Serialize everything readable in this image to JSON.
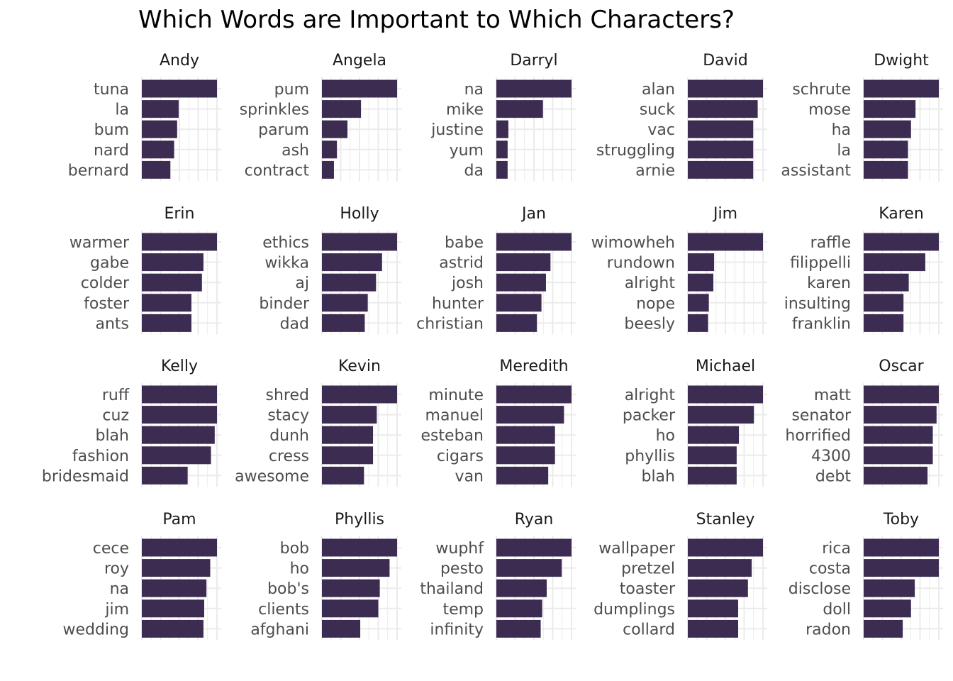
{
  "chart_data": {
    "type": "bar",
    "orientation": "horizontal",
    "title": "Which Words are Important to Which Characters?",
    "xlabel": "",
    "ylabel": "",
    "grid": true,
    "legend": "none",
    "bar_color": "#3d2c52",
    "grid_color": "#ebebeb",
    "xlim": [
      0,
      1
    ],
    "value_unit": "relative importance (fraction of panel maximum, no axis ticks printed)",
    "panels": [
      {
        "character": "Andy",
        "words": [
          "tuna",
          "la",
          "bum",
          "nard",
          "bernard"
        ],
        "values": [
          1.0,
          0.49,
          0.47,
          0.43,
          0.38
        ]
      },
      {
        "character": "Angela",
        "words": [
          "pum",
          "sprinkles",
          "parum",
          "ash",
          "contract"
        ],
        "values": [
          1.0,
          0.52,
          0.34,
          0.2,
          0.16
        ]
      },
      {
        "character": "Darryl",
        "words": [
          "na",
          "mike",
          "justine",
          "yum",
          "da"
        ],
        "values": [
          1.0,
          0.62,
          0.16,
          0.15,
          0.15
        ]
      },
      {
        "character": "David",
        "words": [
          "alan",
          "suck",
          "vac",
          "struggling",
          "arnie"
        ],
        "values": [
          1.0,
          0.93,
          0.87,
          0.87,
          0.87
        ]
      },
      {
        "character": "Dwight",
        "words": [
          "schrute",
          "mose",
          "ha",
          "la",
          "assistant"
        ],
        "values": [
          1.0,
          0.69,
          0.63,
          0.59,
          0.59
        ]
      },
      {
        "character": "Erin",
        "words": [
          "warmer",
          "gabe",
          "colder",
          "foster",
          "ants"
        ],
        "values": [
          1.0,
          0.82,
          0.8,
          0.66,
          0.66
        ]
      },
      {
        "character": "Holly",
        "words": [
          "ethics",
          "wikka",
          "aj",
          "binder",
          "dad"
        ],
        "values": [
          1.0,
          0.8,
          0.72,
          0.61,
          0.57
        ]
      },
      {
        "character": "Jan",
        "words": [
          "babe",
          "astrid",
          "josh",
          "hunter",
          "christian"
        ],
        "values": [
          1.0,
          0.72,
          0.66,
          0.6,
          0.54
        ]
      },
      {
        "character": "Jim",
        "words": [
          "wimowheh",
          "rundown",
          "alright",
          "nope",
          "beesly"
        ],
        "values": [
          1.0,
          0.35,
          0.34,
          0.28,
          0.27
        ]
      },
      {
        "character": "Karen",
        "words": [
          "raffle",
          "filippelli",
          "karen",
          "insulting",
          "franklin"
        ],
        "values": [
          1.0,
          0.82,
          0.6,
          0.53,
          0.53
        ]
      },
      {
        "character": "Kelly",
        "words": [
          "ruff",
          "cuz",
          "blah",
          "fashion",
          "bridesmaid"
        ],
        "values": [
          1.0,
          1.0,
          0.97,
          0.92,
          0.61
        ]
      },
      {
        "character": "Kevin",
        "words": [
          "shred",
          "stacy",
          "dunh",
          "cress",
          "awesome"
        ],
        "values": [
          1.0,
          0.73,
          0.68,
          0.68,
          0.56
        ]
      },
      {
        "character": "Meredith",
        "words": [
          "minute",
          "manuel",
          "esteban",
          "cigars",
          "van"
        ],
        "values": [
          1.0,
          0.9,
          0.78,
          0.78,
          0.69
        ]
      },
      {
        "character": "Michael",
        "words": [
          "alright",
          "packer",
          "ho",
          "phyllis",
          "blah"
        ],
        "values": [
          1.0,
          0.88,
          0.68,
          0.65,
          0.65
        ]
      },
      {
        "character": "Oscar",
        "words": [
          "matt",
          "senator",
          "horrified",
          "4300",
          "debt"
        ],
        "values": [
          1.0,
          0.97,
          0.92,
          0.92,
          0.85
        ]
      },
      {
        "character": "Pam",
        "words": [
          "cece",
          "roy",
          "na",
          "jim",
          "wedding"
        ],
        "values": [
          1.0,
          0.91,
          0.86,
          0.83,
          0.82
        ]
      },
      {
        "character": "Phyllis",
        "words": [
          "bob",
          "ho",
          "bob's",
          "clients",
          "afghani"
        ],
        "values": [
          1.0,
          0.9,
          0.77,
          0.75,
          0.51
        ]
      },
      {
        "character": "Ryan",
        "words": [
          "wuphf",
          "pesto",
          "thailand",
          "temp",
          "infinity"
        ],
        "values": [
          1.0,
          0.87,
          0.67,
          0.61,
          0.59
        ]
      },
      {
        "character": "Stanley",
        "words": [
          "wallpaper",
          "pretzel",
          "toaster",
          "dumplings",
          "collard"
        ],
        "values": [
          1.0,
          0.85,
          0.8,
          0.67,
          0.67
        ]
      },
      {
        "character": "Toby",
        "words": [
          "rica",
          "costa",
          "disclose",
          "doll",
          "radon"
        ],
        "values": [
          1.0,
          1.0,
          0.68,
          0.63,
          0.52
        ]
      }
    ]
  }
}
